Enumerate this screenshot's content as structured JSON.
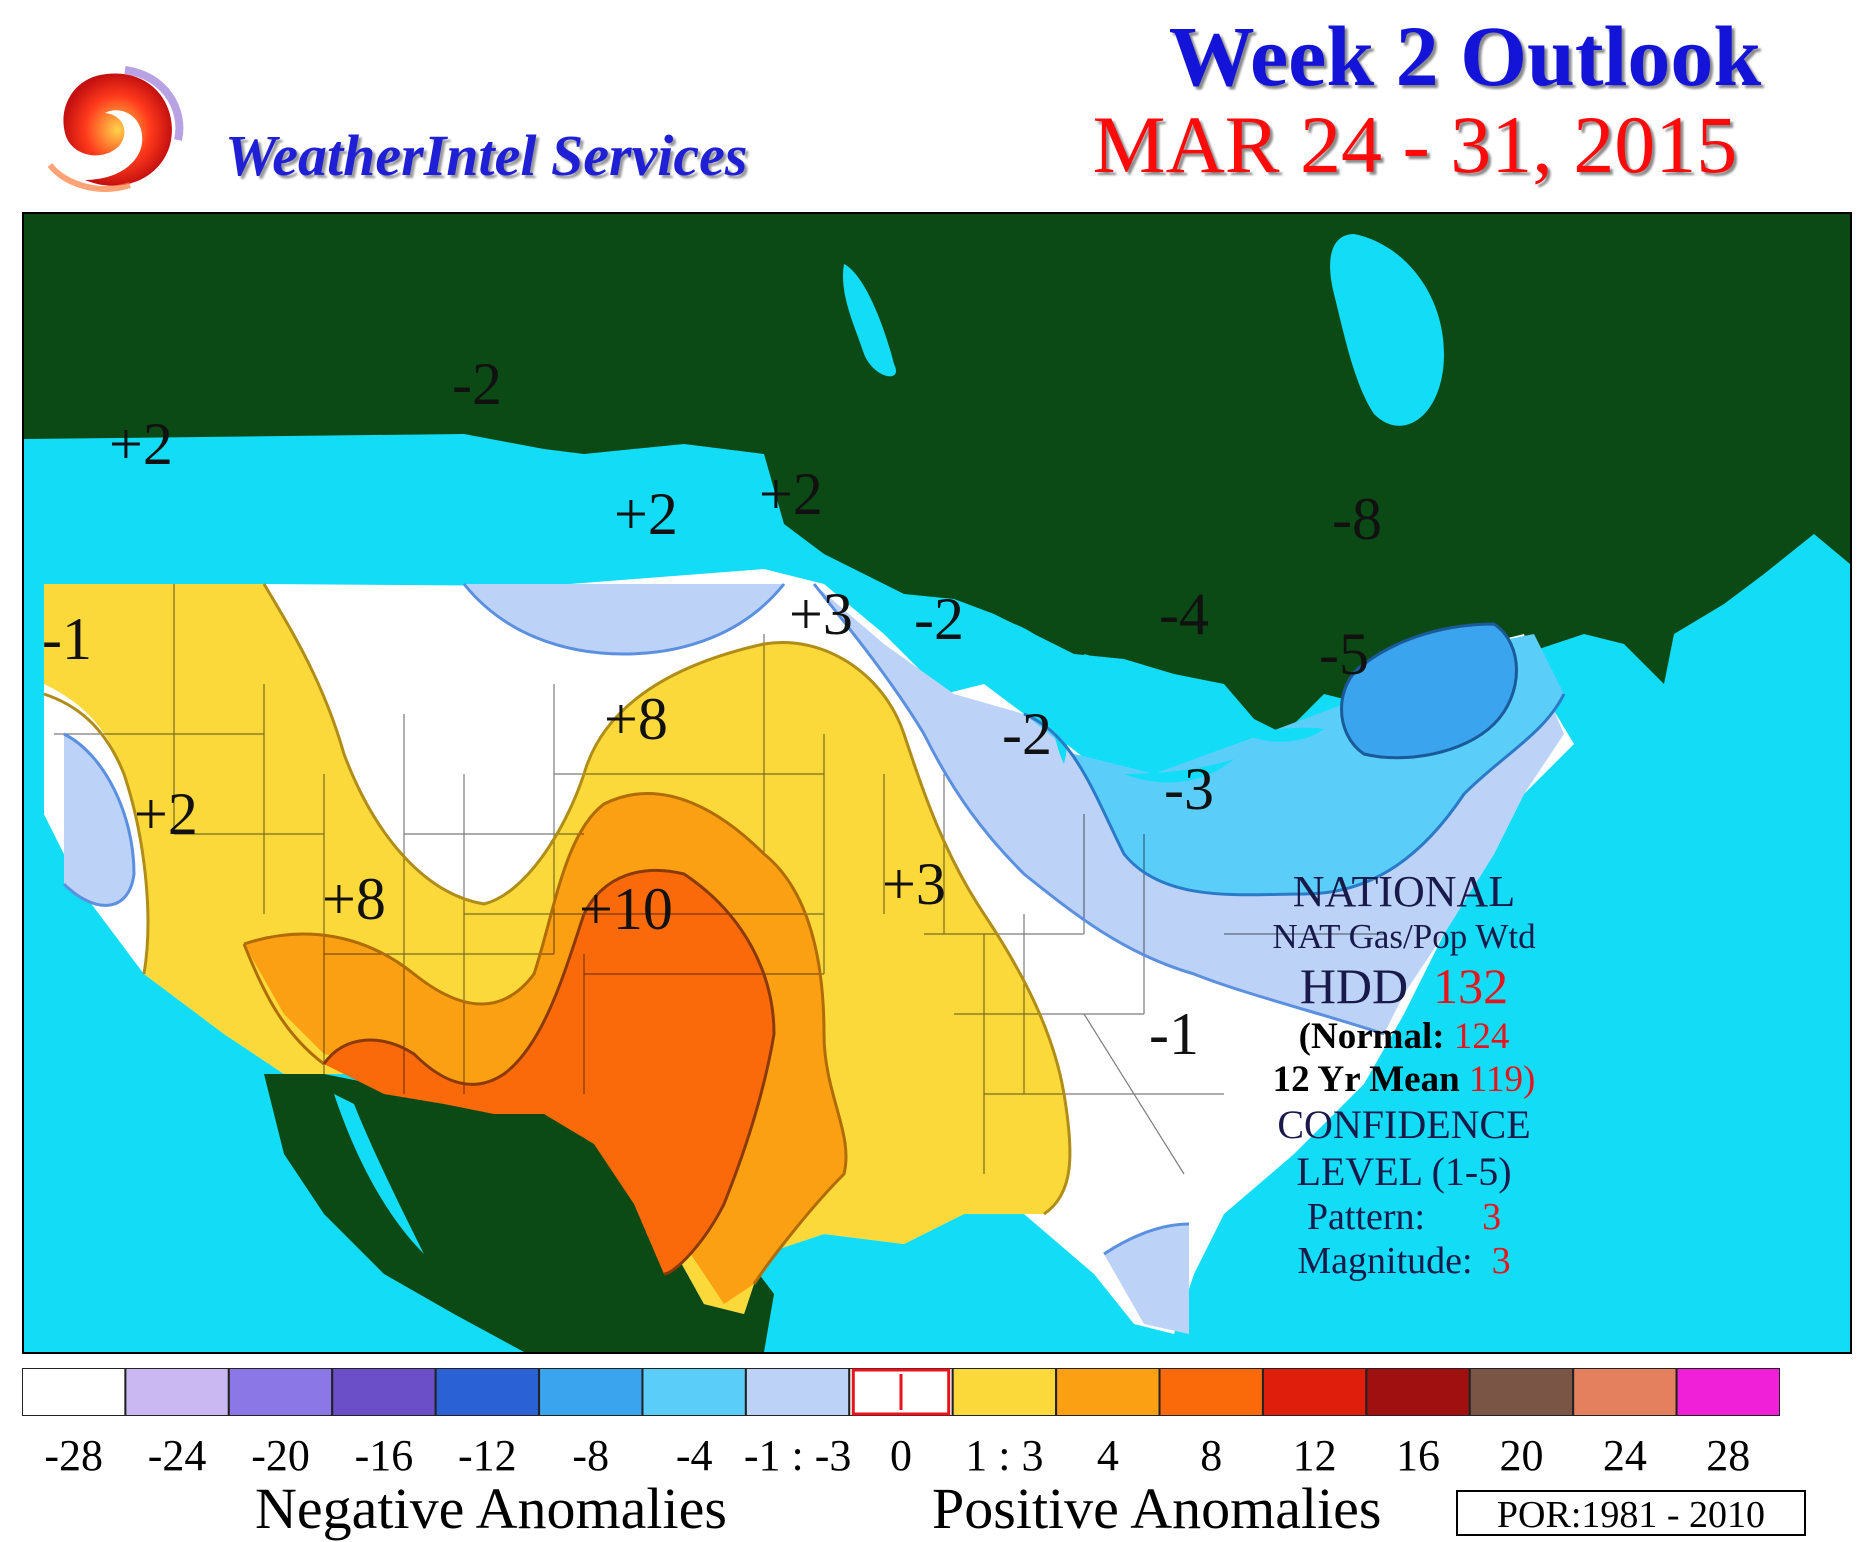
{
  "header": {
    "brand": "WeatherIntel Services",
    "title": "Week 2 Outlook",
    "dates": "MAR 24 - 31, 2015"
  },
  "anomaly_labels": [
    "+2",
    "-2",
    "+2",
    "+2",
    "-1",
    "+3",
    "-2",
    "-8",
    "-4",
    "-5",
    "+8",
    "-2",
    "+2",
    "-3",
    "+8",
    "+10",
    "+3",
    "-1"
  ],
  "info_box": {
    "region": "NATIONAL",
    "weighting": "NAT Gas/Pop Wtd",
    "hdd_label": "HDD",
    "hdd_value": "132",
    "normal_label": "(Normal:",
    "normal_value": "124",
    "mean_label": "12 Yr Mean",
    "mean_value": "119)",
    "confidence_label": "CONFIDENCE",
    "confidence_level": "LEVEL (1-5)",
    "pattern_label": "Pattern:",
    "pattern_value": "3",
    "magnitude_label": "Magnitude:",
    "magnitude_value": "3"
  },
  "legend": {
    "colors": [
      "#ffffff",
      "#c9b8f2",
      "#8b78e6",
      "#6a4fc9",
      "#2a62d6",
      "#3aa4ee",
      "#5acdf9",
      "#bcd3f7",
      "#ffffff",
      "#fbd93a",
      "#fba012",
      "#fb6a0a",
      "#e01e0c",
      "#a01010",
      "#7a5444",
      "#e4805e",
      "#f020d8"
    ],
    "tick_labels": [
      "-28",
      "-24",
      "-20",
      "-16",
      "-12",
      "-8",
      "-4",
      "-1 : -3",
      "0",
      "1 : 3",
      "4",
      "8",
      "12",
      "16",
      "20",
      "24",
      "28"
    ],
    "negative_label": "Negative Anomalies",
    "positive_label": "Positive Anomalies",
    "por": "POR:1981 - 2010"
  },
  "colors": {
    "land_outside": "#0b4a14",
    "water": "#13dcf7",
    "neutral": "#ffffff",
    "minus_1_3": "#bcd3f7",
    "minus_4": "#5acdf9",
    "minus_8": "#3aa4ee",
    "plus_1_3": "#fbd93a",
    "plus_4": "#fba012",
    "plus_8": "#fb6a0a"
  }
}
